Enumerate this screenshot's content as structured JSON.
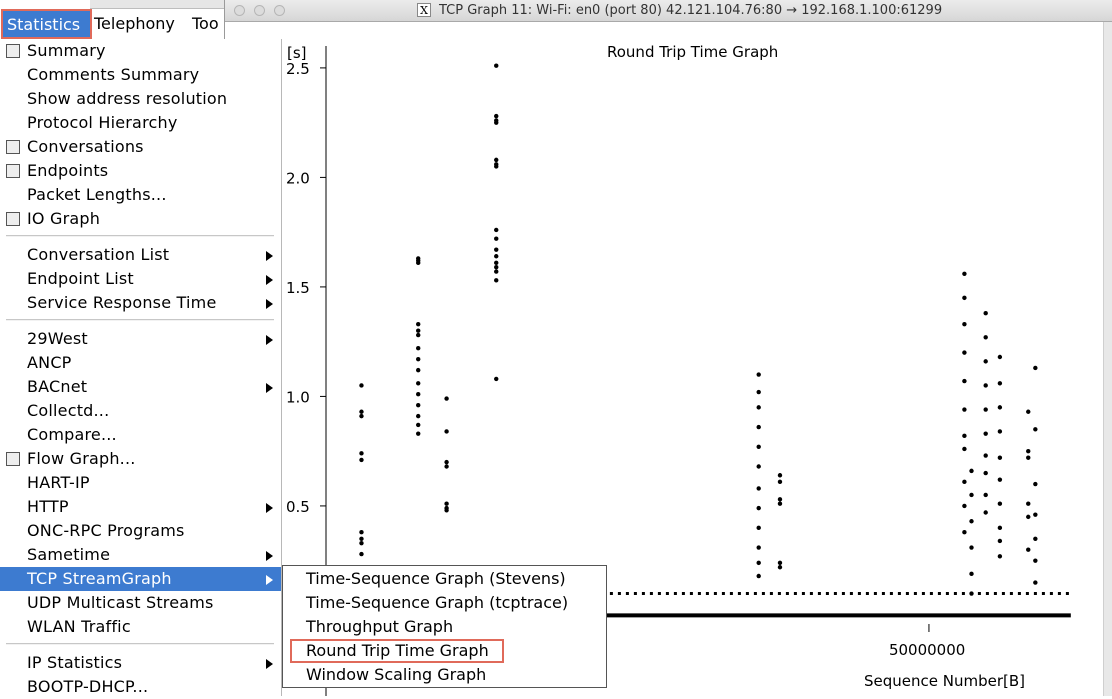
{
  "menubar": {
    "statistics": "Statistics",
    "telephony": "Telephony",
    "tools": "Too"
  },
  "background_window": {
    "title": "Wi-Fi: en0"
  },
  "graph_window": {
    "title": "TCP Graph 11: Wi-Fi: en0 (port 80) 42.121.104.76:80 → 192.168.1.100:61299",
    "logo_letter": "X"
  },
  "statistics_menu": {
    "items": [
      {
        "label": "Summary",
        "icon": "summary-icon"
      },
      {
        "label": "Comments Summary"
      },
      {
        "label": "Show address resolution"
      },
      {
        "label": "Protocol Hierarchy"
      },
      {
        "label": "Conversations",
        "icon": "conversations-icon"
      },
      {
        "label": "Endpoints",
        "icon": "endpoints-icon"
      },
      {
        "label": "Packet Lengths..."
      },
      {
        "label": "IO Graph",
        "icon": "io-graph-icon"
      },
      {
        "label": "Conversation List",
        "submenu": true
      },
      {
        "label": "Endpoint List",
        "submenu": true
      },
      {
        "label": "Service Response Time",
        "submenu": true
      },
      {
        "label": "29West",
        "submenu": true
      },
      {
        "label": "ANCP"
      },
      {
        "label": "BACnet",
        "submenu": true
      },
      {
        "label": "Collectd..."
      },
      {
        "label": "Compare..."
      },
      {
        "label": "Flow Graph...",
        "icon": "flow-graph-icon"
      },
      {
        "label": "HART-IP"
      },
      {
        "label": "HTTP",
        "submenu": true
      },
      {
        "label": "ONC-RPC Programs"
      },
      {
        "label": "Sametime",
        "submenu": true
      },
      {
        "label": "TCP StreamGraph",
        "submenu": true,
        "selected": true
      },
      {
        "label": "UDP Multicast Streams"
      },
      {
        "label": "WLAN Traffic"
      },
      {
        "label": "IP Statistics",
        "submenu": true
      },
      {
        "label": "BOOTP-DHCP..."
      }
    ]
  },
  "tcp_submenu": {
    "items": [
      {
        "label": "Time-Sequence Graph (Stevens)"
      },
      {
        "label": "Time-Sequence Graph (tcptrace)"
      },
      {
        "label": "Throughput Graph"
      },
      {
        "label": "Round Trip Time Graph",
        "highlighted": true
      },
      {
        "label": "Window Scaling Graph"
      }
    ]
  },
  "chart_data": {
    "type": "scatter",
    "title": "Round Trip Time Graph",
    "xlabel": "Sequence Number[B]",
    "ylabel": "[s]",
    "y_ticks": [
      0.5,
      1.0,
      1.5,
      2.0,
      2.5
    ],
    "y_tick_labels": [
      "0.5",
      "1.0",
      "1.5",
      "2.0",
      "2.5"
    ],
    "x_ticks": [
      50000000
    ],
    "x_tick_labels": [
      "50000000"
    ],
    "xlim": [
      -35000000,
      72000000
    ],
    "ylim": [
      -0.03,
      2.6
    ],
    "grid": false,
    "point_color": "#000000",
    "series": [
      {
        "points": [
          [
            -30000000,
            1.05
          ],
          [
            -30000000,
            0.93
          ],
          [
            -30000000,
            0.91
          ],
          [
            -30000000,
            0.74
          ],
          [
            -30000000,
            0.71
          ],
          [
            -30000000,
            0.38
          ],
          [
            -30000000,
            0.35
          ],
          [
            -30000000,
            0.33
          ],
          [
            -30000000,
            0.28
          ],
          [
            -22000000,
            1.63
          ],
          [
            -22000000,
            1.62
          ],
          [
            -22000000,
            1.61
          ],
          [
            -22000000,
            1.33
          ],
          [
            -22000000,
            1.3
          ],
          [
            -22000000,
            1.28
          ],
          [
            -22000000,
            1.22
          ],
          [
            -22000000,
            1.17
          ],
          [
            -22000000,
            1.12
          ],
          [
            -22000000,
            1.06
          ],
          [
            -22000000,
            1.01
          ],
          [
            -22000000,
            0.96
          ],
          [
            -22000000,
            0.91
          ],
          [
            -22000000,
            0.87
          ],
          [
            -22000000,
            0.83
          ],
          [
            -18000000,
            0.99
          ],
          [
            -18000000,
            0.84
          ],
          [
            -18000000,
            0.7
          ],
          [
            -18000000,
            0.68
          ],
          [
            -18000000,
            0.51
          ],
          [
            -18000000,
            0.49
          ],
          [
            -18000000,
            0.48
          ],
          [
            -11000000,
            2.51
          ],
          [
            -11000000,
            2.28
          ],
          [
            -11000000,
            2.26
          ],
          [
            -11000000,
            2.25
          ],
          [
            -11000000,
            2.08
          ],
          [
            -11000000,
            2.06
          ],
          [
            -11000000,
            2.05
          ],
          [
            -11000000,
            1.76
          ],
          [
            -11000000,
            1.72
          ],
          [
            -11000000,
            1.67
          ],
          [
            -11000000,
            1.64
          ],
          [
            -11000000,
            1.61
          ],
          [
            -11000000,
            1.59
          ],
          [
            -11000000,
            1.57
          ],
          [
            -11000000,
            1.53
          ],
          [
            -11000000,
            1.08
          ],
          [
            26000000,
            1.1
          ],
          [
            26000000,
            1.02
          ],
          [
            26000000,
            0.95
          ],
          [
            26000000,
            0.86
          ],
          [
            26000000,
            0.77
          ],
          [
            26000000,
            0.68
          ],
          [
            26000000,
            0.58
          ],
          [
            26000000,
            0.49
          ],
          [
            26000000,
            0.4
          ],
          [
            26000000,
            0.31
          ],
          [
            26000000,
            0.24
          ],
          [
            26000000,
            0.18
          ],
          [
            29000000,
            0.64
          ],
          [
            29000000,
            0.61
          ],
          [
            29000000,
            0.53
          ],
          [
            29000000,
            0.51
          ],
          [
            29000000,
            0.24
          ],
          [
            29000000,
            0.22
          ],
          [
            55000000,
            1.56
          ],
          [
            55000000,
            1.45
          ],
          [
            55000000,
            1.33
          ],
          [
            55000000,
            1.2
          ],
          [
            55000000,
            1.07
          ],
          [
            55000000,
            0.94
          ],
          [
            55000000,
            0.82
          ],
          [
            55000000,
            0.76
          ],
          [
            55000000,
            0.61
          ],
          [
            55000000,
            0.5
          ],
          [
            55000000,
            0.38
          ],
          [
            56000000,
            0.66
          ],
          [
            56000000,
            0.55
          ],
          [
            56000000,
            0.43
          ],
          [
            56000000,
            0.31
          ],
          [
            56000000,
            0.19
          ],
          [
            56000000,
            0.1
          ],
          [
            58000000,
            1.38
          ],
          [
            58000000,
            1.27
          ],
          [
            58000000,
            1.16
          ],
          [
            58000000,
            1.05
          ],
          [
            58000000,
            0.94
          ],
          [
            58000000,
            0.83
          ],
          [
            58000000,
            0.73
          ],
          [
            58000000,
            0.65
          ],
          [
            58000000,
            0.55
          ],
          [
            58000000,
            0.47
          ],
          [
            60000000,
            1.18
          ],
          [
            60000000,
            1.06
          ],
          [
            60000000,
            0.95
          ],
          [
            60000000,
            0.84
          ],
          [
            60000000,
            0.72
          ],
          [
            60000000,
            0.62
          ],
          [
            60000000,
            0.51
          ],
          [
            60000000,
            0.4
          ],
          [
            60000000,
            0.34
          ],
          [
            60000000,
            0.27
          ],
          [
            64000000,
            0.93
          ],
          [
            64000000,
            0.75
          ],
          [
            64000000,
            0.72
          ],
          [
            64000000,
            0.51
          ],
          [
            64000000,
            0.45
          ],
          [
            64000000,
            0.3
          ],
          [
            65000000,
            1.13
          ],
          [
            65000000,
            0.85
          ],
          [
            65000000,
            0.6
          ],
          [
            65000000,
            0.46
          ],
          [
            65000000,
            0.35
          ],
          [
            65000000,
            0.25
          ],
          [
            65000000,
            0.15
          ]
        ]
      }
    ],
    "baseline_bands": [
      {
        "y": 0.1,
        "x_from": -4000000,
        "x_to": 70000000
      },
      {
        "y": 0.0,
        "x_from": -4000000,
        "x_to": 70000000
      }
    ]
  }
}
